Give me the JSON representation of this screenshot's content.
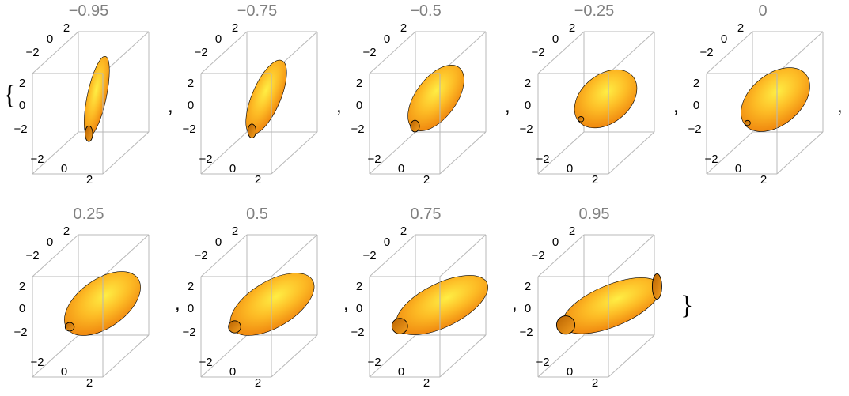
{
  "open_brace": "{",
  "close_brace": "}",
  "separator": ",",
  "tick_labels": {
    "neg": "−2",
    "zero": "0",
    "pos": "2"
  },
  "colors": {
    "title": "#808080",
    "box": "#b8b8b8",
    "tick": "#000000",
    "surface_light": "#ffe13a",
    "surface_mid": "#fba521",
    "surface_dark": "#c86a00"
  },
  "panels": [
    {
      "title": "−0.95",
      "rho": -0.95
    },
    {
      "title": "−0.75",
      "rho": -0.75
    },
    {
      "title": "−0.5",
      "rho": -0.5
    },
    {
      "title": "−0.25",
      "rho": -0.25
    },
    {
      "title": "0",
      "rho": 0
    },
    {
      "title": "0.25",
      "rho": 0.25
    },
    {
      "title": "0.5",
      "rho": 0.5
    },
    {
      "title": "0.75",
      "rho": 0.75
    },
    {
      "title": "0.95",
      "rho": 0.95
    }
  ]
}
